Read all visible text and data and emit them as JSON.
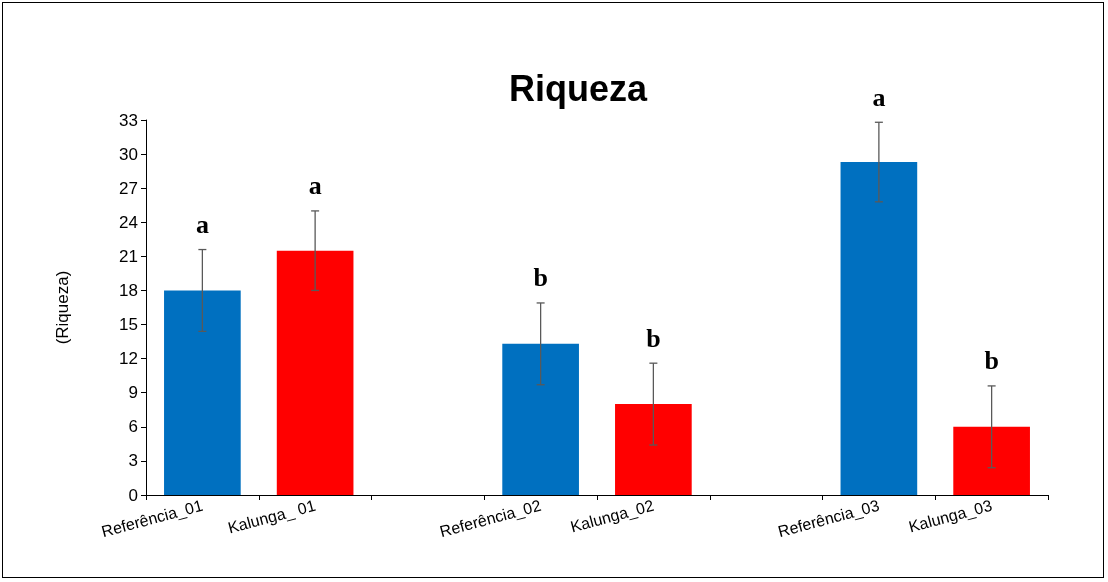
{
  "chart_data": {
    "type": "bar",
    "title": "Riqueza",
    "ylabel": "(Riqueza)",
    "categories": [
      "Referência_01",
      "Kalunga_ 01",
      null,
      "Referência_02",
      "Kalunga_02",
      null,
      "Referência_03",
      "Kalunga_03"
    ],
    "values": [
      18,
      21.5,
      null,
      13.3,
      8,
      null,
      29.3,
      6
    ],
    "colors": [
      "#0070c0",
      "#ff0000",
      "#ffffff",
      "#0070c0",
      "#ff0000",
      "#ffffff",
      "#0070c0",
      "#ff0000"
    ],
    "errors": [
      3.6,
      3.5,
      null,
      3.6,
      3.6,
      null,
      3.5,
      3.6
    ],
    "annotations": [
      {
        "text": "a",
        "x": "Referência_01",
        "y": 21.6
      },
      {
        "text": "a",
        "x": "Kalunga_ 01",
        "y": 25
      },
      {
        "text": "b",
        "x": "Referência_02",
        "y": 16.9
      },
      {
        "text": "b",
        "x": "Kalunga_02",
        "y": 11.6
      },
      {
        "text": "a",
        "x": "Referência_03",
        "y": 32.8
      },
      {
        "text": "b",
        "x": "Kalunga_03",
        "y": 9.6
      }
    ],
    "ylim": [
      0,
      33
    ],
    "yticks": [
      0,
      3,
      6,
      9,
      12,
      15,
      18,
      21,
      24,
      27,
      30,
      33
    ],
    "grid": false
  }
}
